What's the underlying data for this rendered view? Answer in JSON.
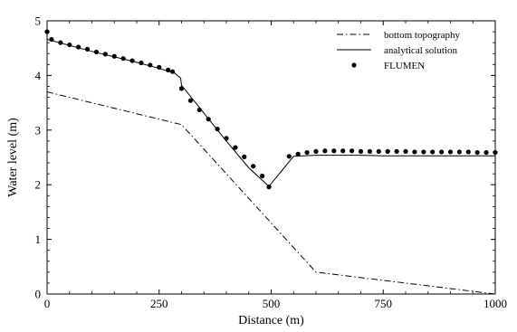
{
  "chart_data": {
    "type": "line",
    "xlabel": "Distance (m)",
    "ylabel": "Water level (m)",
    "xlim": [
      0,
      1000
    ],
    "ylim": [
      0,
      5
    ],
    "xticks": [
      0,
      250,
      500,
      750,
      1000
    ],
    "yticks": [
      0,
      1,
      2,
      3,
      4,
      5
    ],
    "legend_position": "top-right",
    "series": [
      {
        "name": "bottom topography",
        "style": "dash-dot line",
        "color": "#000000",
        "x": [
          0,
          300,
          600,
          1000
        ],
        "y": [
          3.7,
          3.1,
          0.4,
          0.0
        ]
      },
      {
        "name": "analytical solution",
        "style": "solid line",
        "color": "#000000",
        "x": [
          0,
          50,
          100,
          150,
          200,
          250,
          285,
          298,
          300,
          350,
          400,
          450,
          495,
          550,
          600,
          650,
          700,
          750,
          800,
          850,
          900,
          950,
          1000
        ],
        "y": [
          4.66,
          4.55,
          4.44,
          4.34,
          4.24,
          4.13,
          4.04,
          3.95,
          3.82,
          3.31,
          2.8,
          2.31,
          1.97,
          2.52,
          2.54,
          2.54,
          2.54,
          2.53,
          2.53,
          2.53,
          2.53,
          2.53,
          2.53
        ]
      },
      {
        "name": "FLUMEN",
        "style": "markers",
        "color": "#000000",
        "x": [
          0,
          10,
          30,
          50,
          70,
          90,
          110,
          130,
          150,
          170,
          190,
          210,
          230,
          250,
          270,
          280,
          300,
          320,
          340,
          360,
          380,
          400,
          420,
          440,
          460,
          480,
          495,
          540,
          560,
          580,
          600,
          620,
          640,
          660,
          680,
          700,
          720,
          740,
          760,
          780,
          800,
          820,
          840,
          860,
          880,
          900,
          920,
          940,
          960,
          980,
          1000
        ],
        "y": [
          4.8,
          4.66,
          4.6,
          4.56,
          4.52,
          4.48,
          4.43,
          4.39,
          4.35,
          4.31,
          4.27,
          4.23,
          4.19,
          4.15,
          4.1,
          4.07,
          3.76,
          3.54,
          3.37,
          3.2,
          3.02,
          2.85,
          2.68,
          2.51,
          2.34,
          2.16,
          1.96,
          2.52,
          2.56,
          2.59,
          2.61,
          2.62,
          2.62,
          2.62,
          2.62,
          2.61,
          2.61,
          2.61,
          2.61,
          2.61,
          2.61,
          2.6,
          2.6,
          2.6,
          2.6,
          2.6,
          2.6,
          2.6,
          2.59,
          2.59,
          2.59
        ]
      }
    ]
  }
}
